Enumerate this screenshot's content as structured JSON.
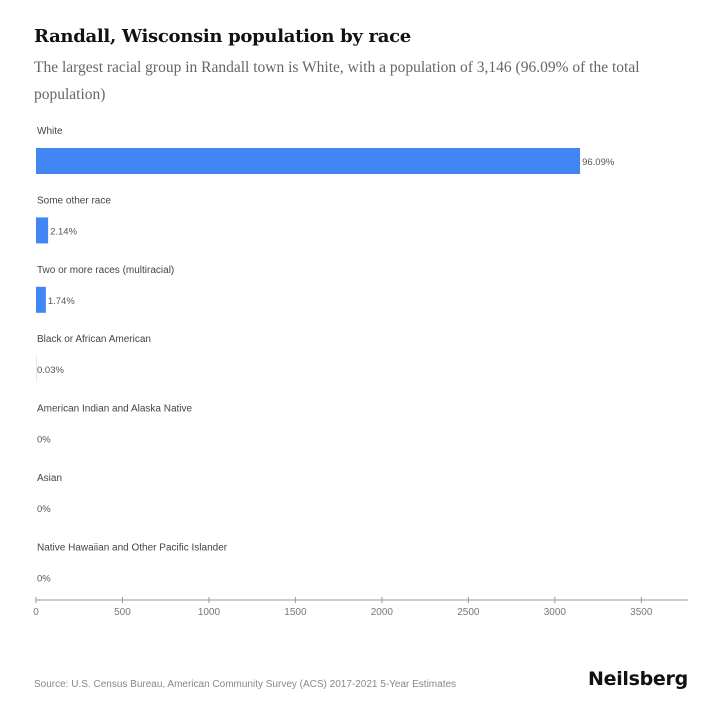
{
  "chart_data": {
    "type": "bar",
    "orientation": "horizontal",
    "title": "Randall, Wisconsin population by race",
    "subtitle": "The largest racial group in Randall town is White, with a population of 3,146 (96.09% of the total population)",
    "categories": [
      "White",
      "Some other race",
      "Two or more races (multiracial)",
      "Black or African American",
      "American Indian and Alaska Native",
      "Asian",
      "Native Hawaiian and Other Pacific Islander"
    ],
    "values": [
      3146,
      70,
      57,
      1,
      0,
      0,
      0
    ],
    "data_labels": [
      "96.09%",
      "2.14%",
      "1.74%",
      "0.03%",
      "0%",
      "0%",
      "0%"
    ],
    "xlim": [
      0,
      3770
    ],
    "x_ticks": [
      0,
      500,
      1000,
      1500,
      2000,
      2500,
      3000,
      3500
    ],
    "xlabel": "",
    "ylabel": "",
    "grid": false,
    "bar_color": "#4285f4"
  },
  "footer": {
    "source": "Source: U.S. Census Bureau, American Community Survey (ACS) 2017-2021 5-Year Estimates",
    "brand": "Neilsberg"
  }
}
